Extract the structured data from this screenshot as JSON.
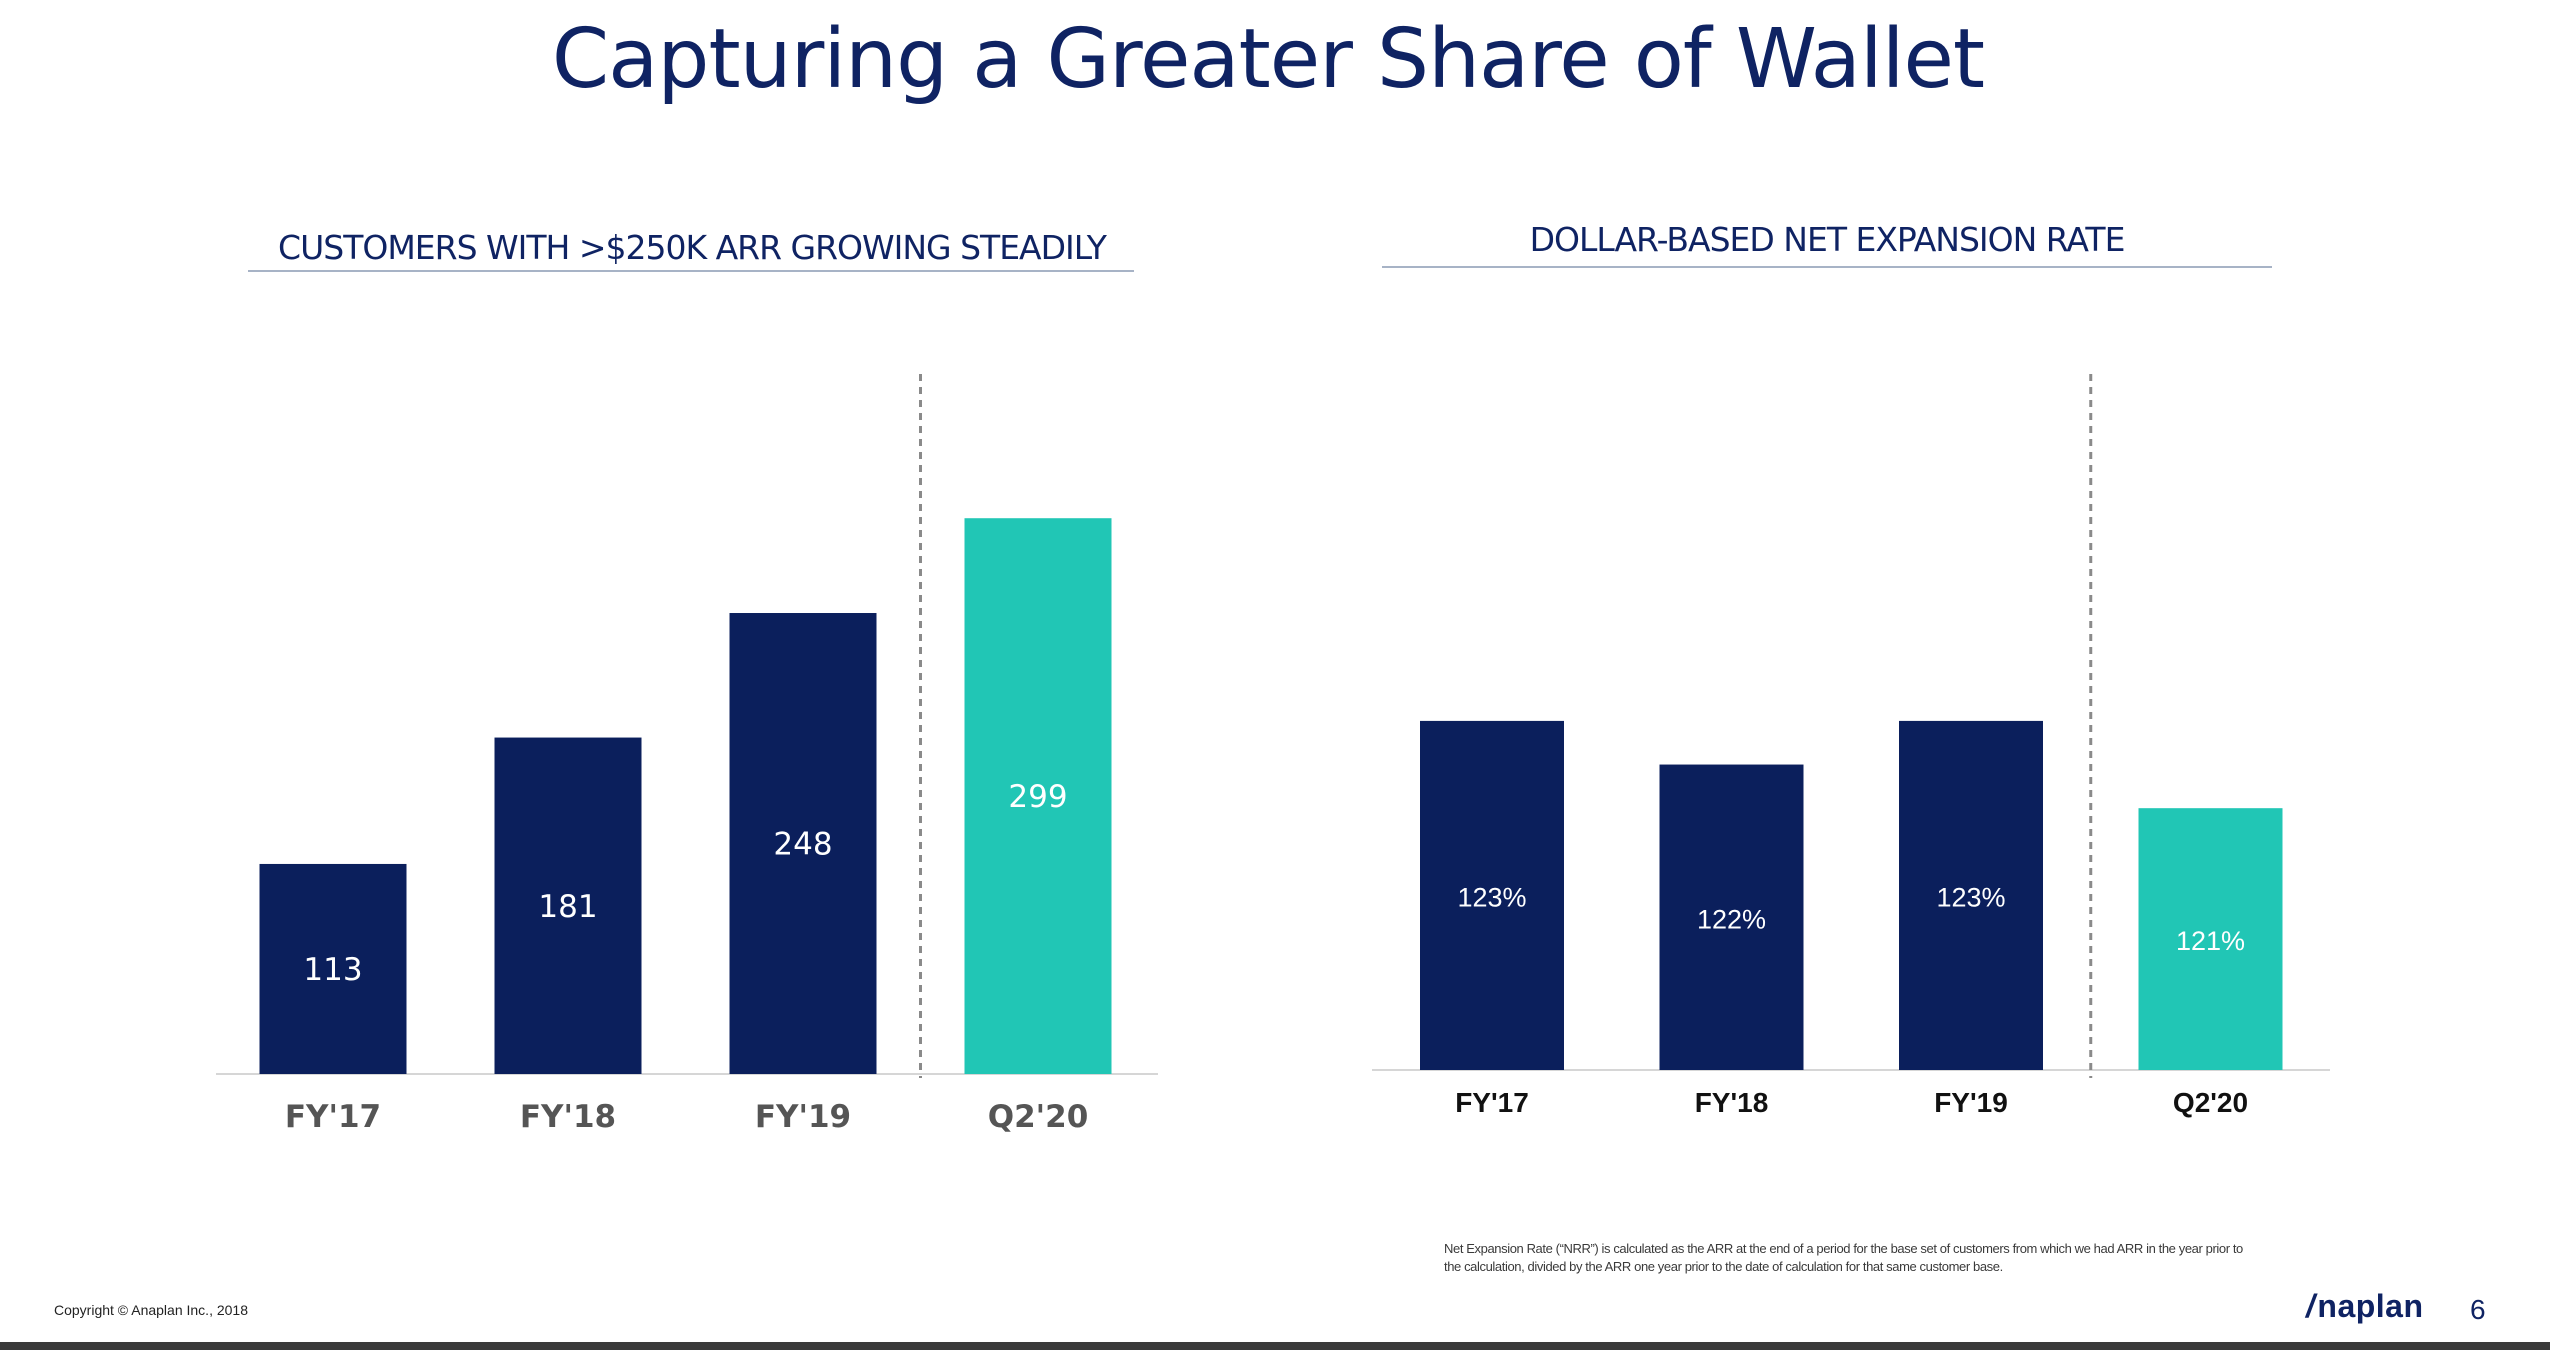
{
  "slide": {
    "title": "Capturing a Greater Share of Wallet",
    "copyright": "Copyright © Anaplan Inc., 2018",
    "logo_mark": "/",
    "logo_text": "naplan",
    "page_number": "6",
    "footnote": "Net Expansion Rate (“NRR”) is calculated as the ARR at the end of a period for the base set of customers from which we had ARR in the year prior to the calculation, divided by the ARR one year prior to the date of calculation for that same customer base.",
    "colors": {
      "navy": "#0b1f5c",
      "teal": "#21c6b5",
      "title": "#0f2363"
    }
  },
  "chart_data": [
    {
      "type": "bar",
      "title": "CUSTOMERS WITH >$250K ARR GROWING STEADILY",
      "categories": [
        "FY'17",
        "FY'18",
        "FY'19",
        "Q2'20"
      ],
      "values": [
        113,
        181,
        248,
        299
      ],
      "labels": [
        "113",
        "181",
        "248",
        "299"
      ],
      "highlight_index": 3,
      "divider_before_index": 3,
      "ylim": [
        0,
        340
      ],
      "xlabel": "",
      "ylabel": "",
      "grid": false,
      "legend": "none"
    },
    {
      "type": "bar",
      "title": "DOLLAR-BASED NET EXPANSION RATE",
      "categories": [
        "FY'17",
        "FY'18",
        "FY'19",
        "Q2'20"
      ],
      "values": [
        123,
        122,
        123,
        121
      ],
      "labels": [
        "123%",
        "122%",
        "123%",
        "121%"
      ],
      "highlight_index": 3,
      "divider_before_index": 3,
      "ylim": [
        115,
        126
      ],
      "xlabel": "",
      "ylabel": "",
      "grid": false,
      "legend": "none"
    }
  ]
}
